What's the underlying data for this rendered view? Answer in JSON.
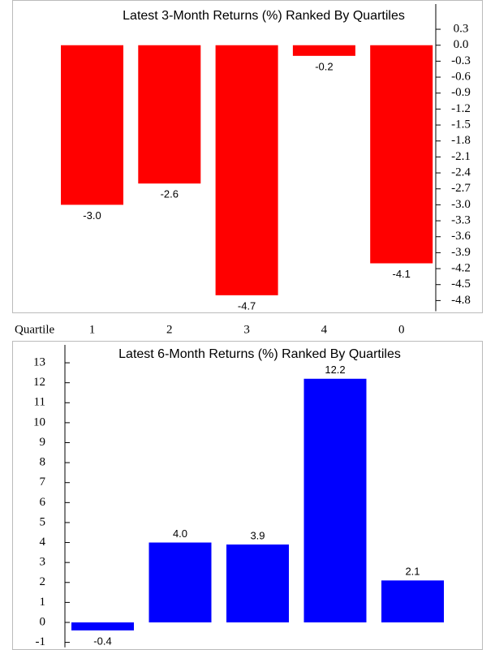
{
  "chart_data": [
    {
      "type": "bar",
      "title": "Latest 3-Month Returns (%) Ranked By Quartiles",
      "x_label": "Quartile",
      "categories": [
        "1",
        "2",
        "3",
        "4",
        "0"
      ],
      "values": [
        -3.0,
        -2.6,
        -4.7,
        -0.2,
        -4.1
      ],
      "value_labels": [
        "-3.0",
        "-2.6",
        "-4.7",
        "-0.2",
        "-4.1"
      ],
      "color": "#ff0000",
      "y_axis_side": "right",
      "ylim": [
        -5.0,
        0.85
      ],
      "yticks": [
        0.3,
        {
          "value": 0,
          "label": "0.0"
        },
        -0.3,
        -0.6,
        -0.9,
        -1.2,
        -1.5,
        -1.8,
        -2.1,
        -2.4,
        -2.7,
        {
          "value": -3,
          "label": "-3.0"
        },
        -3.3,
        -3.6,
        -3.9,
        -4.2,
        -4.5,
        -4.8
      ]
    },
    {
      "type": "bar",
      "title": "Latest 6-Month Returns (%) Ranked By Quartiles",
      "values": [
        -0.4,
        4.0,
        3.9,
        12.2,
        2.1
      ],
      "value_labels": [
        "-0.4",
        "4.0",
        "3.9",
        "12.2",
        "2.1"
      ],
      "color": "#0000ff",
      "y_axis_side": "left",
      "ylim": [
        -1.25,
        14.1
      ],
      "yticks": [
        13,
        12,
        11,
        10,
        9,
        8,
        7,
        6,
        5,
        4,
        3,
        2,
        1,
        0,
        -1
      ]
    }
  ]
}
